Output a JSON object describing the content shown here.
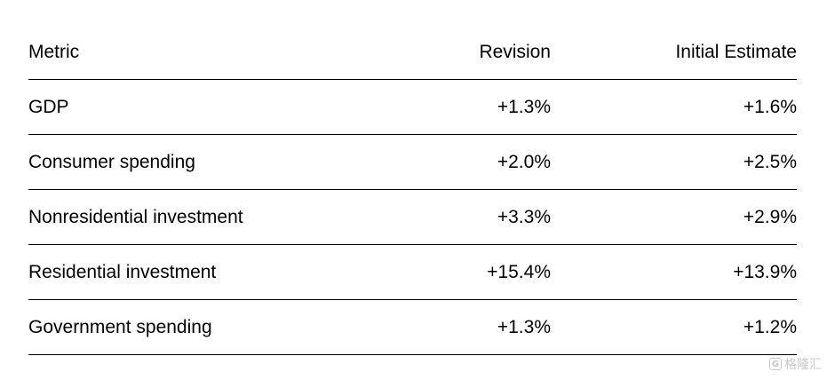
{
  "table": {
    "headers": [
      "Metric",
      "Revision",
      "Initial Estimate"
    ],
    "rows": [
      [
        "GDP",
        "+1.3%",
        "+1.6%"
      ],
      [
        "Consumer spending",
        "+2.0%",
        "+2.5%"
      ],
      [
        "Nonresidential investment",
        "+3.3%",
        "+2.9%"
      ],
      [
        "Residential investment",
        "+15.4%",
        "+13.9%"
      ],
      [
        "Government spending",
        "+1.3%",
        "+1.2%"
      ]
    ]
  },
  "watermark": {
    "text": "格隆汇",
    "logo_letter": "G"
  }
}
